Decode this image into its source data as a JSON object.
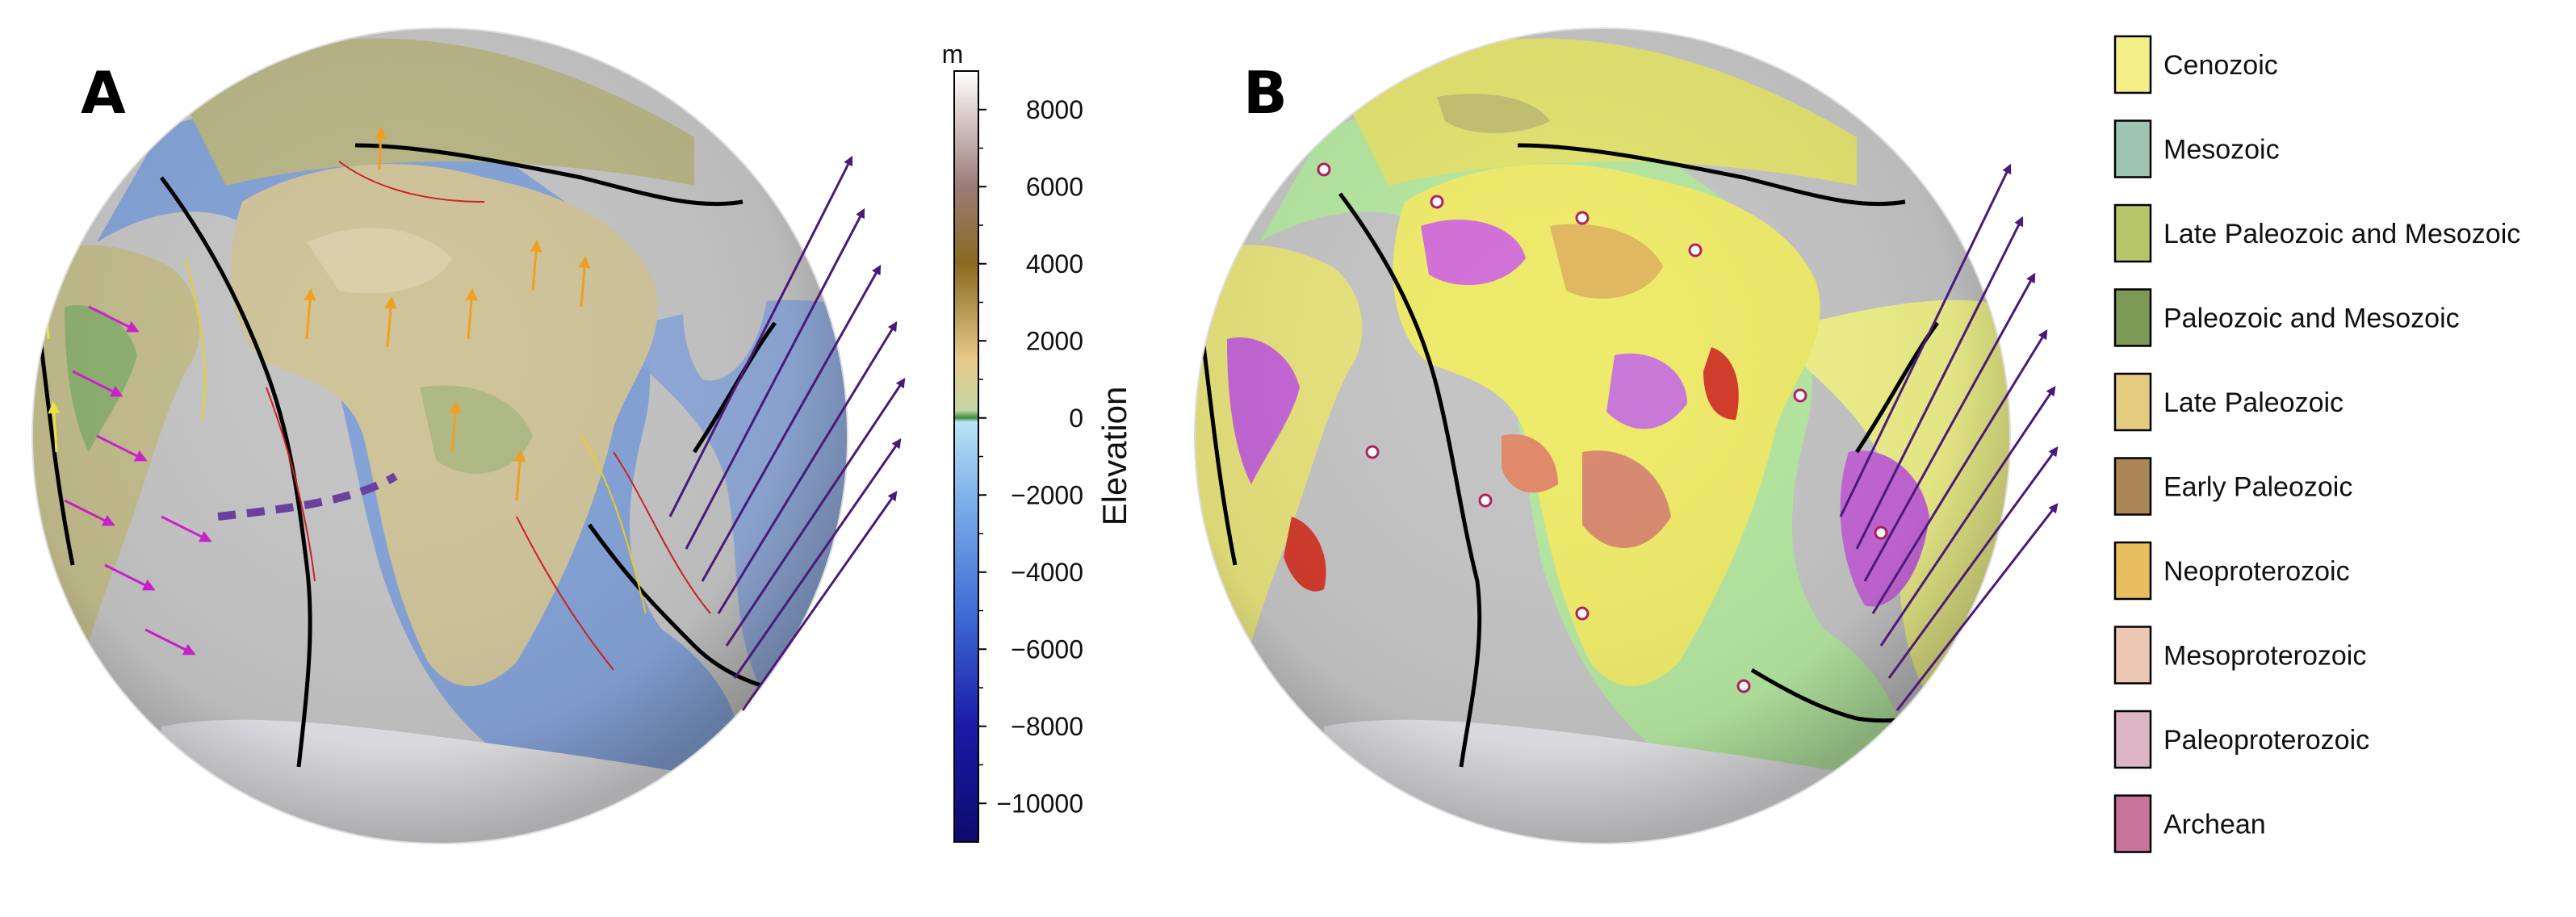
{
  "panels": {
    "a_label": "A",
    "b_label": "B"
  },
  "colorbar": {
    "unit": "m",
    "title": "Elevation",
    "ticks": [
      8000,
      6000,
      4000,
      2000,
      0,
      -2000,
      -4000,
      -6000,
      -8000,
      -10000
    ],
    "range": [
      -11000,
      9000
    ],
    "stops": [
      {
        "v": -11000,
        "c": "#0d0b6e"
      },
      {
        "v": -8000,
        "c": "#1a1aa8"
      },
      {
        "v": -5000,
        "c": "#3d6fd6"
      },
      {
        "v": -2000,
        "c": "#7fb3ea"
      },
      {
        "v": -100,
        "c": "#b9e3f7"
      },
      {
        "v": 0,
        "c": "#3c8b3a"
      },
      {
        "v": 200,
        "c": "#c2d6a4"
      },
      {
        "v": 1500,
        "c": "#e8c98a"
      },
      {
        "v": 4000,
        "c": "#8a6a1e"
      },
      {
        "v": 6000,
        "c": "#9b7b78"
      },
      {
        "v": 9000,
        "c": "#ffffff"
      }
    ]
  },
  "legend": [
    {
      "label": "Cenozoic",
      "color": "#f4ee88"
    },
    {
      "label": "Mesozoic",
      "color": "#9ec4b4"
    },
    {
      "label": "Late Paleozoic and Mesozoic",
      "color": "#b8c66a"
    },
    {
      "label": "Paleozoic and Mesozoic",
      "color": "#7c9a55"
    },
    {
      "label": "Late Paleozoic",
      "color": "#e6cc80"
    },
    {
      "label": "Early Paleozoic",
      "color": "#aa8556"
    },
    {
      "label": "Neoproterozoic",
      "color": "#e8be5e"
    },
    {
      "label": "Mesoproterozoic",
      "color": "#ecc8b4"
    },
    {
      "label": "Paleoproterozoic",
      "color": "#dcb4c4"
    },
    {
      "label": "Archean",
      "color": "#c8739a"
    }
  ]
}
